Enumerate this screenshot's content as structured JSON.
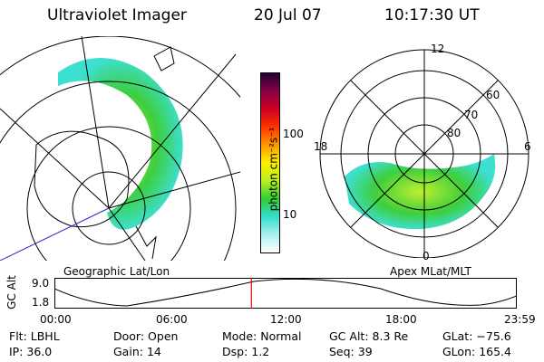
{
  "header": {
    "instrument": "Ultraviolet Imager",
    "date": "20 Jul 07",
    "time": "10:17:30 UT"
  },
  "colorbar": {
    "unit_label": "photon cm⁻²s⁻¹",
    "ticks": [
      "100",
      "10"
    ],
    "scale": "log",
    "colors": [
      "#ffffff",
      "#aaf0f0",
      "#33ddcc",
      "#33cc33",
      "#bbee22",
      "#ffee00",
      "#ff9900",
      "#ff3300",
      "#cc0022",
      "#880044",
      "#220033"
    ]
  },
  "geo_map": {
    "caption": "Geographic Lat/Lon"
  },
  "polar_plot": {
    "caption": "Apex MLat/MLT",
    "mlt_labels": {
      "top": "12",
      "bottom": "0",
      "left": "18",
      "right": "6"
    },
    "lat_labels": [
      "60",
      "70",
      "80"
    ]
  },
  "orbit_plot": {
    "ylabel": "GC Alt",
    "yticks": [
      "9.0",
      "1.8"
    ],
    "xticks": [
      "00:00",
      "06:00",
      "12:00",
      "18:00",
      "23:59"
    ],
    "current_time_fraction": 0.426
  },
  "status": {
    "row1": [
      {
        "label": "Flt:",
        "value": "LBHL"
      },
      {
        "label": "Door:",
        "value": "Open"
      },
      {
        "label": "Mode:",
        "value": "Normal"
      },
      {
        "label": "GC Alt:",
        "value": "8.3 Re"
      },
      {
        "label": "GLat:",
        "value": "−75.6"
      }
    ],
    "row2": [
      {
        "label": "IP:",
        "value": "36.0"
      },
      {
        "label": "Gain:",
        "value": "14"
      },
      {
        "label": "Dsp:",
        "value": "1.2"
      },
      {
        "label": "Seq:",
        "value": "39"
      },
      {
        "label": "GLon:",
        "value": "165.4"
      }
    ]
  }
}
